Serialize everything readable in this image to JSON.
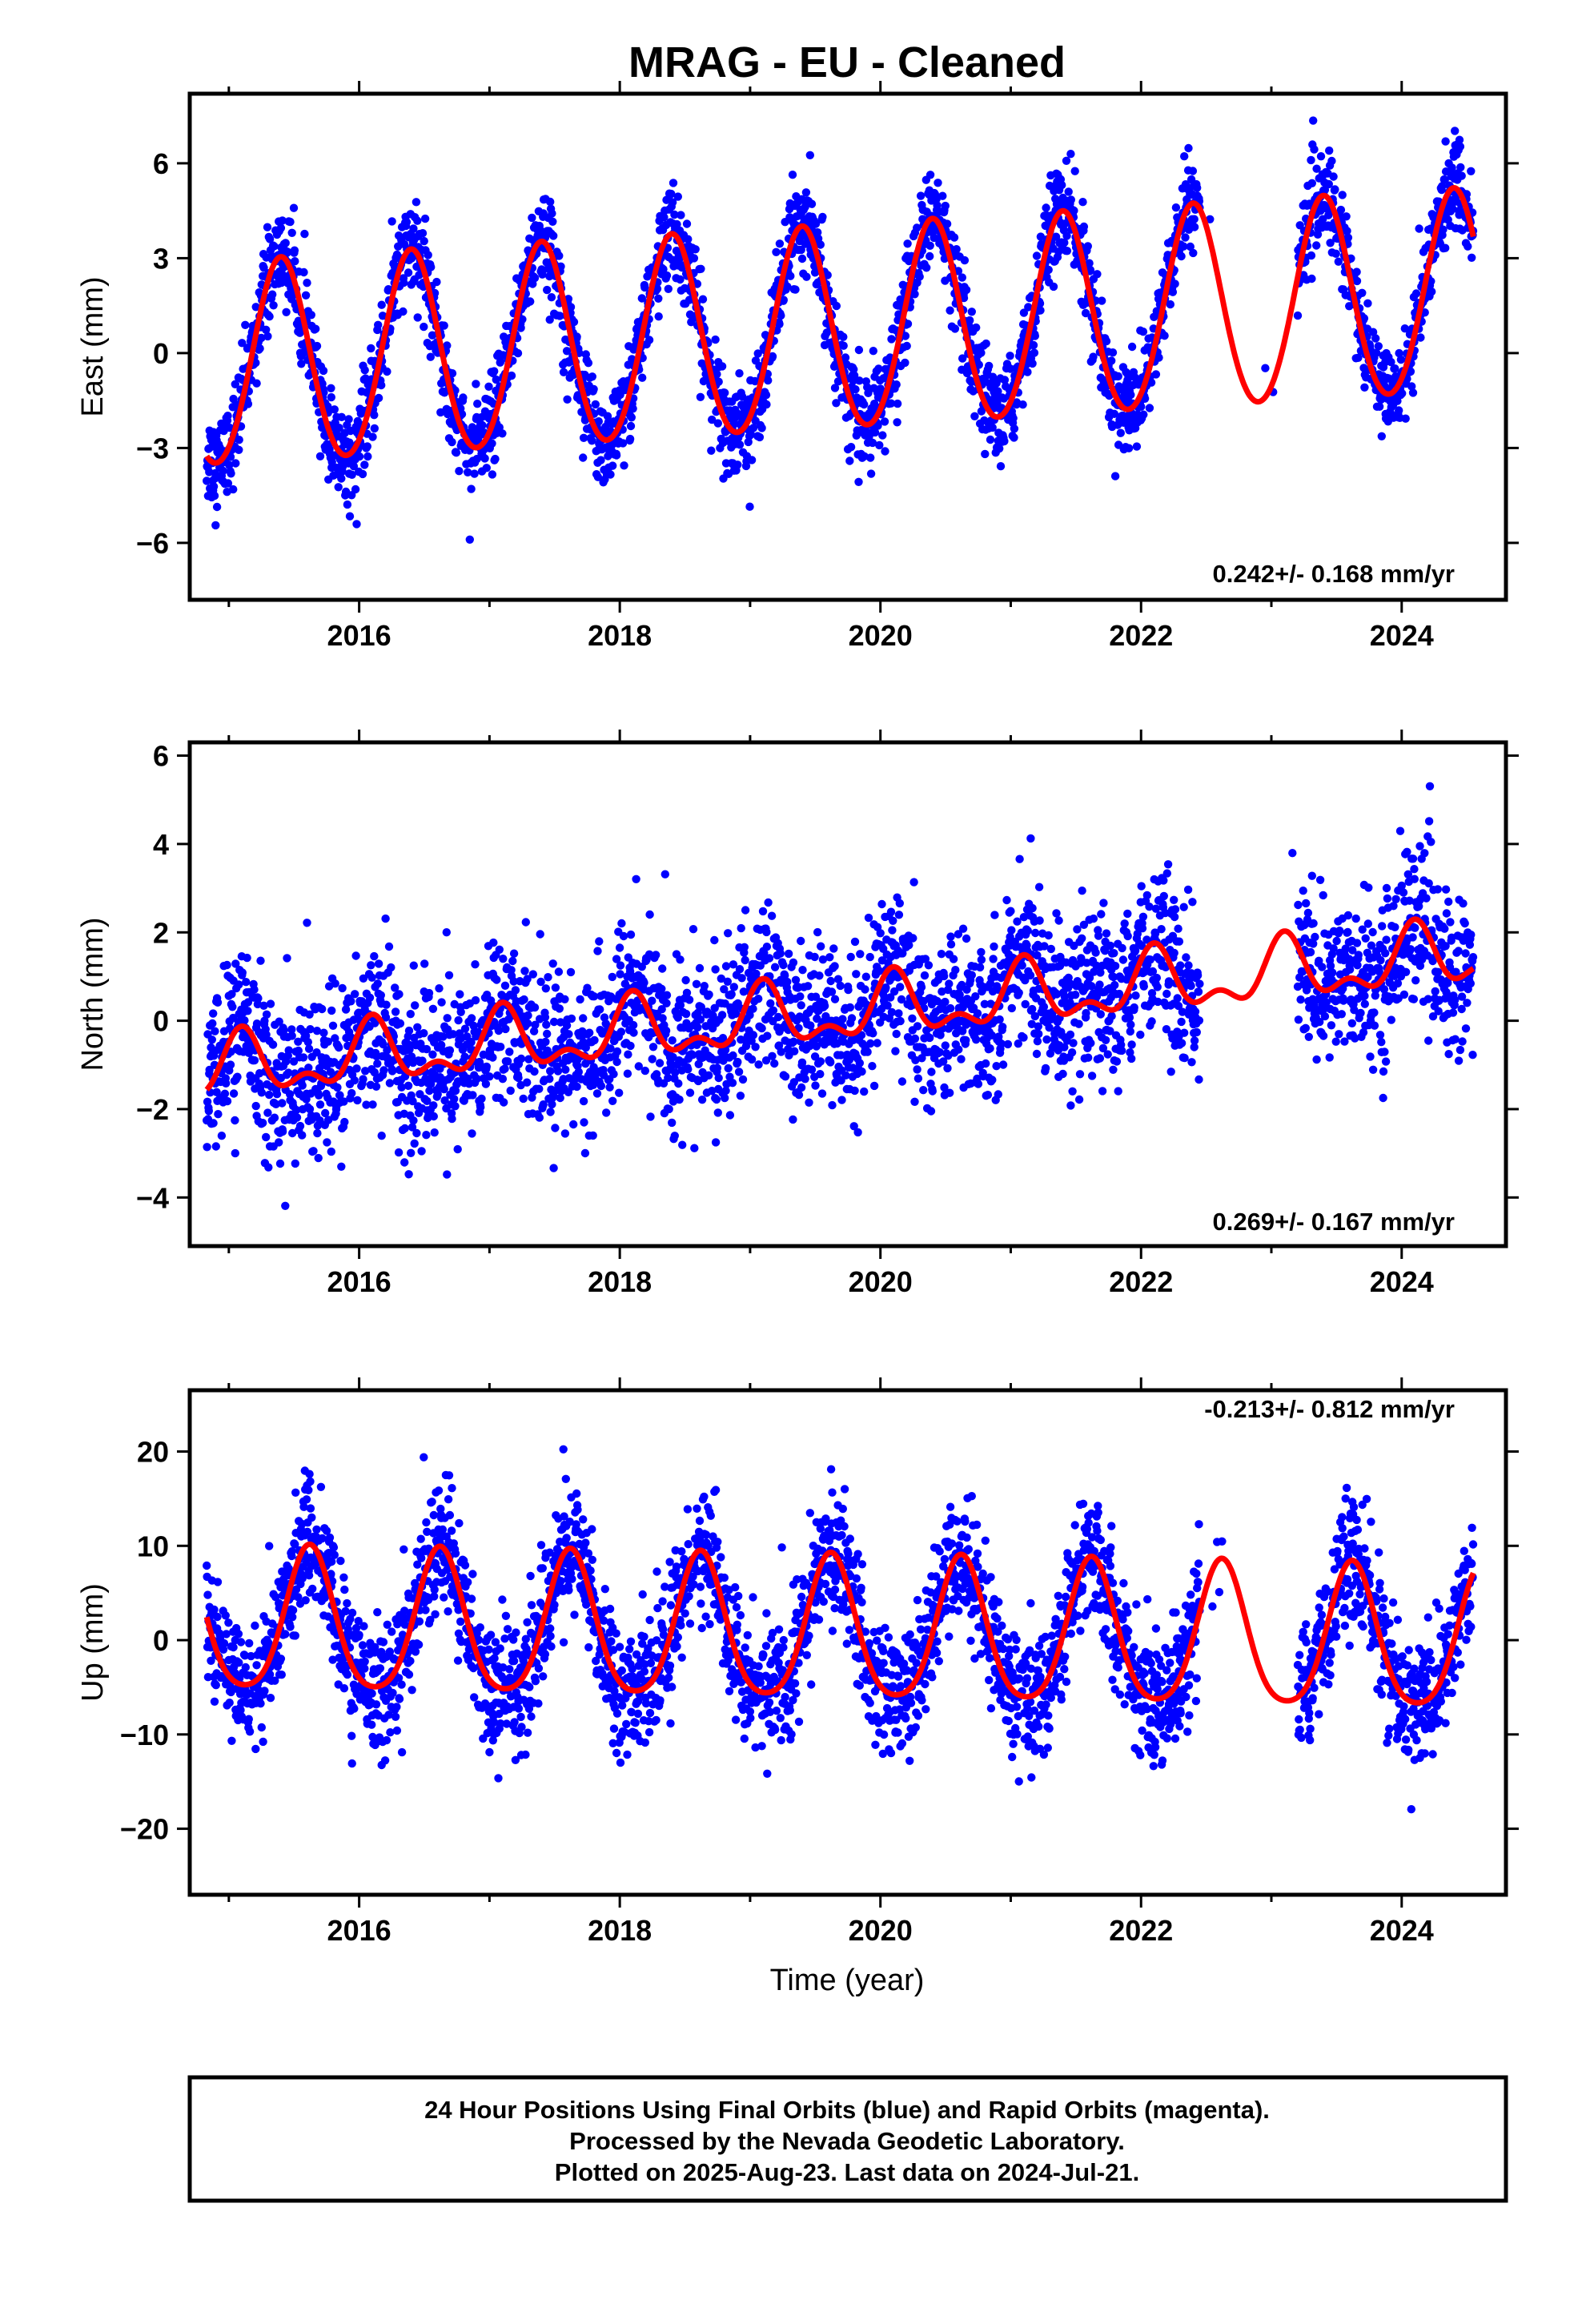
{
  "chart_data": [
    {
      "type": "scatter",
      "title": "MRAG  - EU - Cleaned",
      "ylabel": "East (mm)",
      "xlabel": "",
      "x_ticks": [
        "2016",
        "2018",
        "2020",
        "2022",
        "2024"
      ],
      "y_ticks": [
        "6",
        "3",
        "0",
        "−3",
        "−6"
      ],
      "y_tick_values": [
        6,
        3,
        0,
        -3,
        -6
      ],
      "xlim": [
        2014.7,
        2024.8
      ],
      "ylim": [
        -7.8,
        8.2
      ],
      "rate_label": "0.242+/- 0.168 mm/yr",
      "model": {
        "amplitude": 3.2,
        "trend_start": -0.45,
        "trend_slope": 0.242,
        "peak_frac": 0.4,
        "semi_amp": 0.2
      },
      "gaps": [
        [
          2022.45,
          2023.2
        ]
      ],
      "noise": 1.0,
      "series": [
        {
          "values_description_only": "daily positions"
        }
      ]
    },
    {
      "type": "scatter",
      "title": "",
      "ylabel": "North (mm)",
      "xlabel": "",
      "x_ticks": [
        "2016",
        "2018",
        "2020",
        "2022",
        "2024"
      ],
      "y_ticks": [
        "6",
        "4",
        "2",
        "0",
        "−2",
        "−4"
      ],
      "y_tick_values": [
        6,
        4,
        2,
        0,
        -2,
        -4
      ],
      "xlim": [
        2014.7,
        2024.8
      ],
      "ylim": [
        -5.1,
        6.3
      ],
      "rate_label": "0.269+/- 0.167 mm/yr",
      "model": {
        "amplitude": 0.6,
        "trend_start": -1.1,
        "trend_slope": 0.269,
        "peak_frac": 0.1,
        "semi_amp": 0.35
      },
      "gaps": [
        [
          2022.45,
          2023.2
        ]
      ],
      "noise": 1.2
    },
    {
      "type": "scatter",
      "title": "",
      "ylabel": "Up (mm)",
      "xlabel": "Time (year)",
      "x_ticks": [
        "2016",
        "2018",
        "2020",
        "2022",
        "2024"
      ],
      "y_ticks": [
        "20",
        "10",
        "0",
        "−10",
        "−20"
      ],
      "y_tick_values": [
        20,
        10,
        0,
        -10,
        -20
      ],
      "xlim": [
        2014.7,
        2024.8
      ],
      "ylim": [
        -27,
        26.5
      ],
      "rate_label": "-0.213+/- 0.812 mm/yr",
      "model": {
        "amplitude": 7.5,
        "trend_start": 1.6,
        "trend_slope": -0.213,
        "peak_frac": 0.62,
        "semi_amp": 1.2
      },
      "gaps": [
        [
          2022.45,
          2023.2
        ]
      ],
      "noise": 4.5
    }
  ],
  "footer": {
    "line1": "24 Hour Positions Using Final Orbits (blue) and Rapid Orbits (magenta).",
    "line2": "Processed by the Nevada Geodetic Laboratory.",
    "line3": "Plotted on 2025-Aug-23. Last data on 2024-Jul-21."
  },
  "colors": {
    "points": "#0000ff",
    "model": "#ff0000"
  }
}
